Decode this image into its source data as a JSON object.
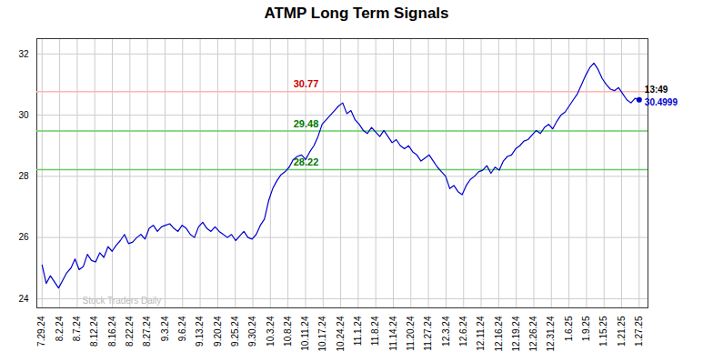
{
  "chart_data": {
    "type": "line",
    "title": "ATMP Long Term Signals",
    "x": [
      0,
      0.2345,
      0.469,
      0.7034,
      0.9379,
      1.1724,
      1.4069,
      1.6414,
      1.8759,
      2.1103,
      2.3448,
      2.5793,
      2.8138,
      3.0483,
      3.2828,
      3.5172,
      3.7517,
      3.9862,
      4.2207,
      4.4552,
      4.6897,
      4.9241,
      5.1586,
      5.3931,
      5.6276,
      5.8621,
      6.0966,
      6.331,
      6.5655,
      6.8,
      7.0345,
      7.269,
      7.5034,
      7.7379,
      7.9724,
      8.2069,
      8.4414,
      8.6759,
      8.9103,
      9.1448,
      9.3793,
      9.6138,
      9.8483,
      10.0828,
      10.3172,
      10.5517,
      10.7862,
      11.0207,
      11.2552,
      11.4897,
      11.7241,
      11.9586,
      12.1931,
      12.4276,
      12.6621,
      12.8966,
      13.131,
      13.3655,
      13.6,
      13.8345,
      14.069,
      14.3034,
      14.5379,
      14.7724,
      15.0069,
      15.2414,
      15.4759,
      15.7103,
      15.9448,
      16.1793,
      16.4138,
      16.6483,
      16.8828,
      17.1172,
      17.3517,
      17.5862,
      17.8207,
      18.0552,
      18.2897,
      18.5241,
      18.7586,
      18.9931,
      19.2276,
      19.4621,
      19.6966,
      19.931,
      20.1655,
      20.4,
      20.6345,
      20.869,
      21.1034,
      21.3379,
      21.5724,
      21.8069,
      22.0414,
      22.2759,
      22.5103,
      22.7448,
      22.9793,
      23.2138,
      23.4483,
      23.6828,
      23.9172,
      24.1517,
      24.3862,
      24.6207,
      24.8552,
      25.0897,
      25.3241,
      25.5586,
      25.7931,
      26.0276,
      26.2621,
      26.4966,
      26.731,
      26.9655,
      27.2,
      27.4345,
      27.669,
      27.9034,
      28.1379,
      28.3724,
      28.6069,
      28.8414,
      29.0759,
      29.3103,
      29.5448,
      29.7793,
      30.0138,
      30.2483,
      30.4828,
      30.7172,
      30.9517,
      31.1862,
      31.4207,
      31.6552,
      31.8897,
      32.1241,
      32.3586,
      32.5931,
      32.8276,
      33.0621,
      33.2966,
      33.531,
      33.7655,
      34
    ],
    "values": [
      25.1,
      24.5,
      24.75,
      24.55,
      24.35,
      24.6,
      24.85,
      25.0,
      25.3,
      24.95,
      25.05,
      25.45,
      25.25,
      25.2,
      25.5,
      25.35,
      25.7,
      25.55,
      25.75,
      25.9,
      26.1,
      25.8,
      25.85,
      26.0,
      26.1,
      25.95,
      26.3,
      26.4,
      26.2,
      26.35,
      26.4,
      26.45,
      26.3,
      26.2,
      26.4,
      26.3,
      26.1,
      26.0,
      26.35,
      26.5,
      26.3,
      26.2,
      26.35,
      26.2,
      26.1,
      26.0,
      26.1,
      25.9,
      26.05,
      26.2,
      26.0,
      25.95,
      26.1,
      26.4,
      26.6,
      27.2,
      27.6,
      27.85,
      28.05,
      28.15,
      28.3,
      28.55,
      28.65,
      28.7,
      28.55,
      28.8,
      29.0,
      29.3,
      29.7,
      29.85,
      30.0,
      30.15,
      30.3,
      30.4,
      30.05,
      30.15,
      29.85,
      29.7,
      29.5,
      29.4,
      29.6,
      29.45,
      29.3,
      29.5,
      29.3,
      29.1,
      29.2,
      29.0,
      28.9,
      29.0,
      28.8,
      28.7,
      28.5,
      28.6,
      28.7,
      28.5,
      28.3,
      28.15,
      28.0,
      27.6,
      27.7,
      27.5,
      27.4,
      27.7,
      27.9,
      28.0,
      28.15,
      28.2,
      28.35,
      28.1,
      28.3,
      28.2,
      28.5,
      28.65,
      28.7,
      28.9,
      29.0,
      29.15,
      29.2,
      29.35,
      29.5,
      29.4,
      29.6,
      29.7,
      29.55,
      29.8,
      30.0,
      30.1,
      30.3,
      30.5,
      30.7,
      31.0,
      31.3,
      31.55,
      31.7,
      31.5,
      31.2,
      31.0,
      30.85,
      30.8,
      30.9,
      30.7,
      30.5,
      30.4,
      30.55,
      30.5
    ],
    "color": "#0000cc",
    "xlim": [
      -0.3,
      34.5
    ],
    "xticks": [
      {
        "value": 0,
        "label": "7.29.24"
      },
      {
        "value": 1,
        "label": "8.2.24"
      },
      {
        "value": 2,
        "label": "8.7.24"
      },
      {
        "value": 3,
        "label": "8.12.24"
      },
      {
        "value": 4,
        "label": "8.16.24"
      },
      {
        "value": 5,
        "label": "8.22.24"
      },
      {
        "value": 6,
        "label": "8.27.24"
      },
      {
        "value": 7,
        "label": "9.3.24"
      },
      {
        "value": 8,
        "label": "9.6.24"
      },
      {
        "value": 9,
        "label": "9.13.24"
      },
      {
        "value": 10,
        "label": "9.20.24"
      },
      {
        "value": 11,
        "label": "9.25.24"
      },
      {
        "value": 12,
        "label": "9.30.24"
      },
      {
        "value": 13,
        "label": "10.3.24"
      },
      {
        "value": 14,
        "label": "10.8.24"
      },
      {
        "value": 15,
        "label": "10.11.24"
      },
      {
        "value": 16,
        "label": "10.17.24"
      },
      {
        "value": 17,
        "label": "10.24.24"
      },
      {
        "value": 18,
        "label": "11.1.24"
      },
      {
        "value": 19,
        "label": "11.8.24"
      },
      {
        "value": 20,
        "label": "11.14.24"
      },
      {
        "value": 21,
        "label": "11.20.24"
      },
      {
        "value": 22,
        "label": "11.27.24"
      },
      {
        "value": 23,
        "label": "12.3.24"
      },
      {
        "value": 24,
        "label": "12.6.24"
      },
      {
        "value": 25,
        "label": "12.11.24"
      },
      {
        "value": 26,
        "label": "12.16.24"
      },
      {
        "value": 27,
        "label": "12.19.24"
      },
      {
        "value": 28,
        "label": "12.26.24"
      },
      {
        "value": 29,
        "label": "12.31.24"
      },
      {
        "value": 30,
        "label": "1.6.25"
      },
      {
        "value": 31,
        "label": "1.9.25"
      },
      {
        "value": 32,
        "label": "1.15.25"
      },
      {
        "value": 33,
        "label": "1.21.25"
      },
      {
        "value": 34,
        "label": "1.27.25"
      }
    ],
    "ylim": [
      23.7,
      32.5
    ],
    "yticks": [
      24,
      26,
      28,
      30,
      32
    ],
    "grid": true,
    "hlines": [
      {
        "value": 30.77,
        "label": "30.77",
        "color": "#ffb3b3",
        "label_color": "#cc0000"
      },
      {
        "value": 29.48,
        "label": "29.48",
        "color": "#66cc66",
        "label_color": "#007700"
      },
      {
        "value": 28.22,
        "label": "28.22",
        "color": "#66cc66",
        "label_color": "#007700"
      }
    ],
    "last_time": "13:49",
    "last_price": "30.4999",
    "watermark": "Stock Traders Daily"
  }
}
